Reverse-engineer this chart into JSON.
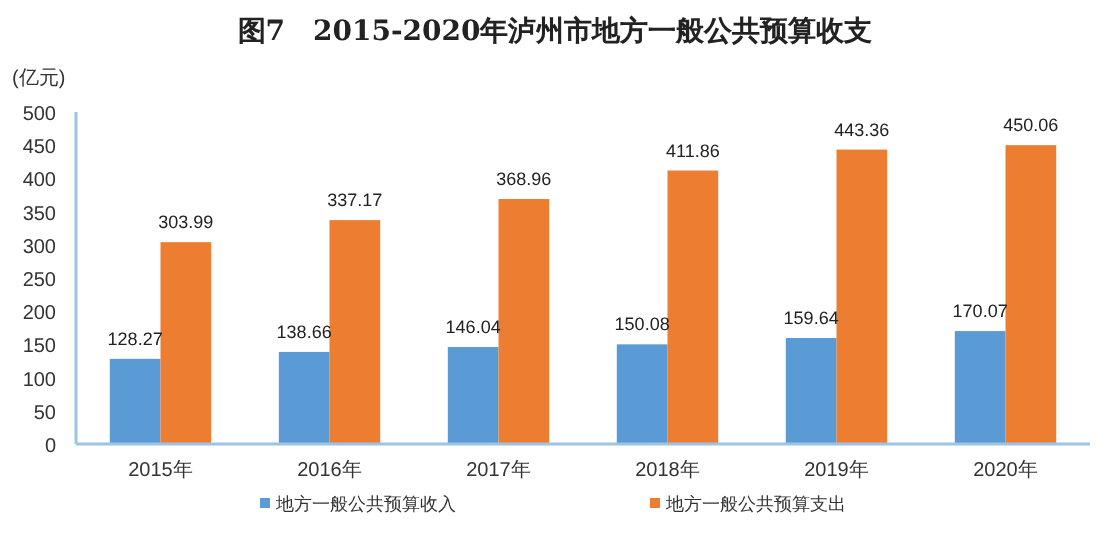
{
  "chart_data": {
    "type": "bar",
    "title": "图7　2015-2020年泸州市地方一般公共预算收支",
    "ylabel": "(亿元)",
    "categories": [
      "2015年",
      "2016年",
      "2017年",
      "2018年",
      "2019年",
      "2020年"
    ],
    "series": [
      {
        "name": "地方一般公共预算收入",
        "color": "#5b9bd5",
        "values": [
          128.27,
          138.66,
          146.04,
          150.08,
          159.64,
          170.07
        ]
      },
      {
        "name": "地方一般公共预算支出",
        "color": "#ed7d31",
        "values": [
          303.99,
          337.17,
          368.96,
          411.86,
          443.36,
          450.06
        ]
      }
    ],
    "ylim": [
      0,
      500
    ],
    "yticks": [
      0,
      50,
      100,
      150,
      200,
      250,
      300,
      350,
      400,
      450,
      500
    ],
    "data_labels": true,
    "legend": "bottom"
  }
}
